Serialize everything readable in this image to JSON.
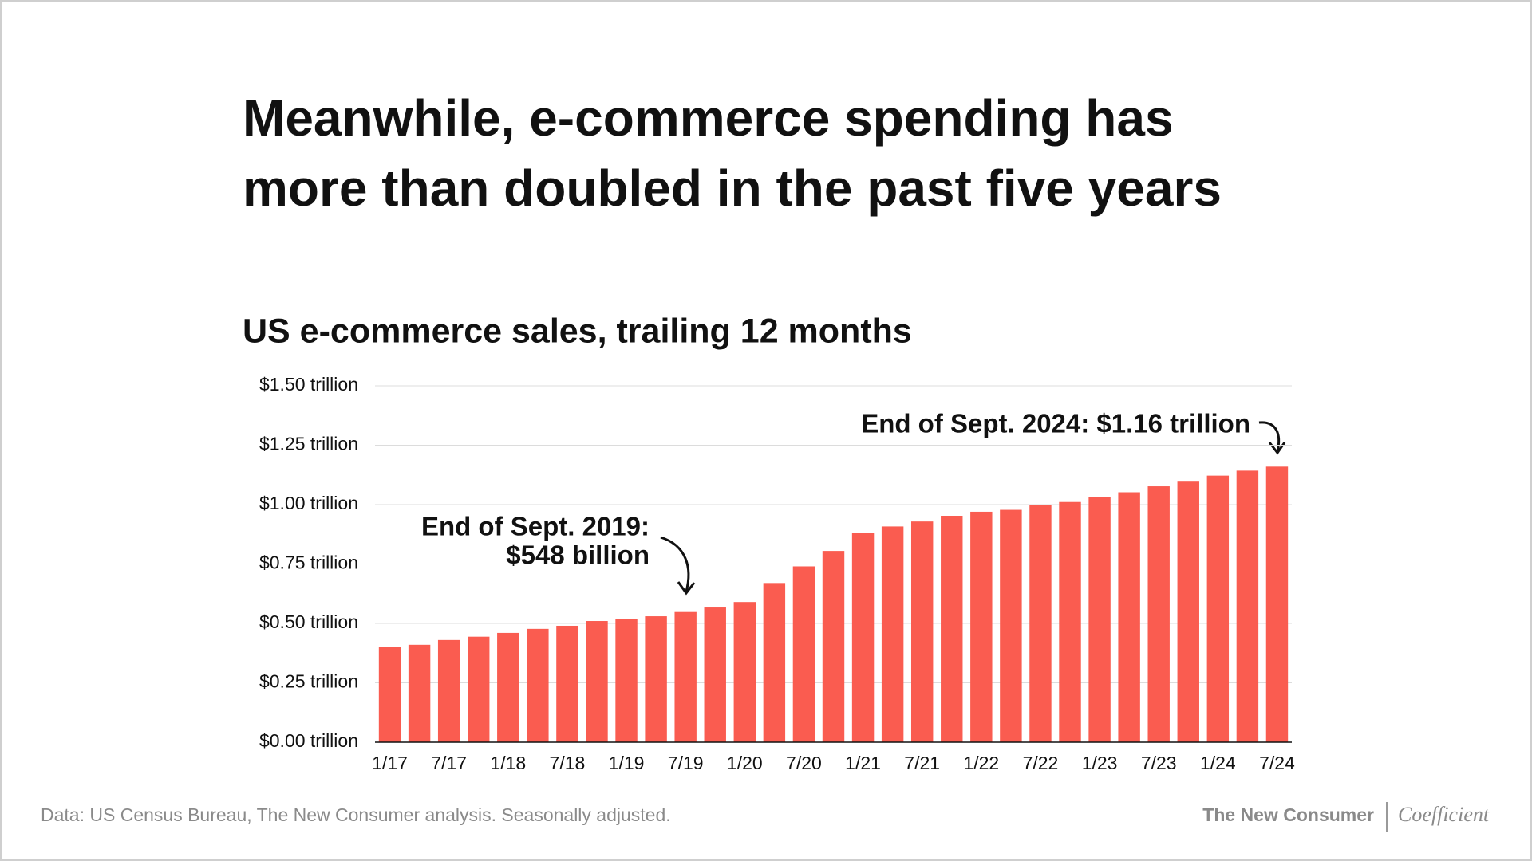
{
  "chart_data": {
    "type": "bar",
    "title": [
      "Meanwhile, e-commerce spending has",
      "more than doubled in the past five years"
    ],
    "subtitle": "US e-commerce sales, trailing 12 months",
    "categories": [
      "1/17",
      null,
      "7/17",
      null,
      "1/18",
      null,
      "7/18",
      null,
      "1/19",
      null,
      "7/19",
      null,
      "1/20",
      null,
      "7/20",
      null,
      "1/21",
      null,
      "7/21",
      null,
      "1/22",
      null,
      "7/22",
      null,
      "1/23",
      null,
      "7/23",
      null,
      "1/24",
      null,
      "7/24"
    ],
    "values": [
      0.4,
      0.41,
      0.43,
      0.444,
      0.46,
      0.477,
      0.49,
      0.51,
      0.518,
      0.53,
      0.548,
      0.567,
      0.59,
      0.67,
      0.74,
      0.805,
      0.88,
      0.908,
      0.929,
      0.953,
      0.97,
      0.978,
      0.999,
      1.011,
      1.032,
      1.052,
      1.077,
      1.1,
      1.122,
      1.143,
      1.16
    ],
    "color": "#fa5c50",
    "ylim": [
      0,
      1.5
    ],
    "yticks": [
      {
        "value": 0,
        "label": "$0.00 trillion"
      },
      {
        "value": 0.25,
        "label": "$0.25 trillion"
      },
      {
        "value": 0.5,
        "label": "$0.50 trillion"
      },
      {
        "value": 0.75,
        "label": "$0.75 trillion"
      },
      {
        "value": 1,
        "label": "$1.00 trillion"
      },
      {
        "value": 1.25,
        "label": "$1.25 trillion"
      },
      {
        "value": 1.5,
        "label": "$1.50 trillion"
      }
    ],
    "grid": true,
    "annotations": [
      {
        "lines": [
          "End of Sept. 2019:",
          "$548 billion"
        ]
      },
      {
        "lines": [
          "End of Sept. 2024: $1.16 trillion"
        ]
      }
    ],
    "source": "Data: US Census Bureau, The New Consumer analysis. Seasonally adjusted.",
    "brands": [
      "The New Consumer",
      "Coefficient"
    ]
  }
}
